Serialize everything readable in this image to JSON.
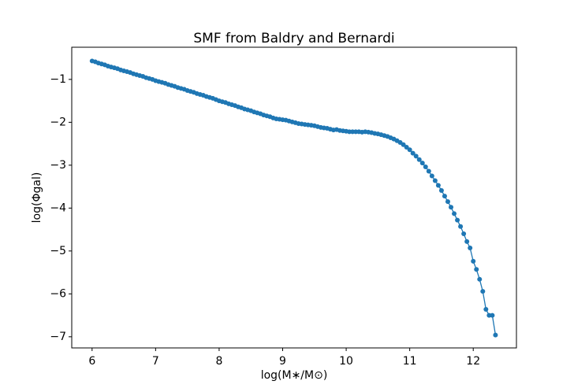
{
  "chart_data": {
    "type": "line",
    "title": "SMF from Baldry and Bernardi",
    "xlabel": "log(M∗/M⊙)",
    "ylabel": "log(Φgal)",
    "x": [
      6.0,
      6.05,
      6.1,
      6.15,
      6.2,
      6.25,
      6.3,
      6.35,
      6.4,
      6.45,
      6.5,
      6.55,
      6.6,
      6.65,
      6.7,
      6.75,
      6.8,
      6.85,
      6.9,
      6.95,
      7.0,
      7.05,
      7.1,
      7.15,
      7.2,
      7.25,
      7.3,
      7.35,
      7.4,
      7.45,
      7.5,
      7.55,
      7.6,
      7.65,
      7.7,
      7.75,
      7.8,
      7.85,
      7.9,
      7.95,
      8.0,
      8.05,
      8.1,
      8.15,
      8.2,
      8.25,
      8.3,
      8.35,
      8.4,
      8.45,
      8.5,
      8.55,
      8.6,
      8.65,
      8.7,
      8.75,
      8.8,
      8.85,
      8.9,
      8.95,
      9.0,
      9.05,
      9.1,
      9.15,
      9.2,
      9.25,
      9.3,
      9.35,
      9.4,
      9.45,
      9.5,
      9.55,
      9.6,
      9.65,
      9.7,
      9.75,
      9.8,
      9.85,
      9.9,
      9.95,
      10.0,
      10.05,
      10.1,
      10.15,
      10.2,
      10.25,
      10.3,
      10.35,
      10.4,
      10.45,
      10.5,
      10.55,
      10.6,
      10.65,
      10.7,
      10.75,
      10.8,
      10.85,
      10.9,
      10.95,
      11.0,
      11.05,
      11.1,
      11.15,
      11.2,
      11.25,
      11.3,
      11.35,
      11.4,
      11.45,
      11.5,
      11.55,
      11.6,
      11.65,
      11.7,
      11.75,
      11.8,
      11.85,
      11.9,
      11.95,
      12.0,
      12.05,
      12.1,
      12.15,
      12.2,
      12.25,
      12.3,
      12.35
    ],
    "series": [
      {
        "color": "#1f77b4",
        "values": [
          -0.57,
          -0.59,
          -0.62,
          -0.64,
          -0.66,
          -0.69,
          -0.71,
          -0.73,
          -0.75,
          -0.78,
          -0.8,
          -0.82,
          -0.84,
          -0.87,
          -0.89,
          -0.91,
          -0.93,
          -0.96,
          -0.98,
          -1.0,
          -1.03,
          -1.05,
          -1.07,
          -1.09,
          -1.12,
          -1.14,
          -1.16,
          -1.19,
          -1.21,
          -1.23,
          -1.26,
          -1.28,
          -1.3,
          -1.33,
          -1.35,
          -1.37,
          -1.4,
          -1.42,
          -1.44,
          -1.47,
          -1.5,
          -1.52,
          -1.54,
          -1.57,
          -1.59,
          -1.61,
          -1.64,
          -1.66,
          -1.69,
          -1.71,
          -1.73,
          -1.76,
          -1.78,
          -1.8,
          -1.83,
          -1.85,
          -1.87,
          -1.9,
          -1.92,
          -1.93,
          -1.94,
          -1.95,
          -1.97,
          -1.99,
          -2.01,
          -2.03,
          -2.04,
          -2.05,
          -2.06,
          -2.07,
          -2.08,
          -2.1,
          -2.12,
          -2.13,
          -2.14,
          -2.16,
          -2.18,
          -2.17,
          -2.19,
          -2.2,
          -2.21,
          -2.22,
          -2.22,
          -2.22,
          -2.22,
          -2.23,
          -2.22,
          -2.23,
          -2.24,
          -2.26,
          -2.27,
          -2.29,
          -2.31,
          -2.33,
          -2.36,
          -2.39,
          -2.43,
          -2.47,
          -2.52,
          -2.58,
          -2.64,
          -2.72,
          -2.79,
          -2.87,
          -2.95,
          -3.04,
          -3.14,
          -3.25,
          -3.36,
          -3.47,
          -3.59,
          -3.72,
          -3.85,
          -3.98,
          -4.13,
          -4.28,
          -4.43,
          -4.6,
          -4.78,
          -4.93,
          -5.24,
          -5.43,
          -5.66,
          -5.94,
          -6.36,
          -6.5,
          -6.5,
          -6.96
        ]
      }
    ],
    "xlim": [
      5.68,
      12.68
    ],
    "ylim": [
      -7.26,
      -0.25
    ],
    "xticks": [
      6,
      7,
      8,
      9,
      10,
      11,
      12
    ],
    "yticks": [
      {
        "value": -1,
        "label": "−1"
      },
      {
        "value": -2,
        "label": "−2"
      },
      {
        "value": -3,
        "label": "−3"
      },
      {
        "value": -4,
        "label": "−4"
      },
      {
        "value": -5,
        "label": "−5"
      },
      {
        "value": -6,
        "label": "−6"
      },
      {
        "value": -7,
        "label": "−7"
      }
    ]
  }
}
